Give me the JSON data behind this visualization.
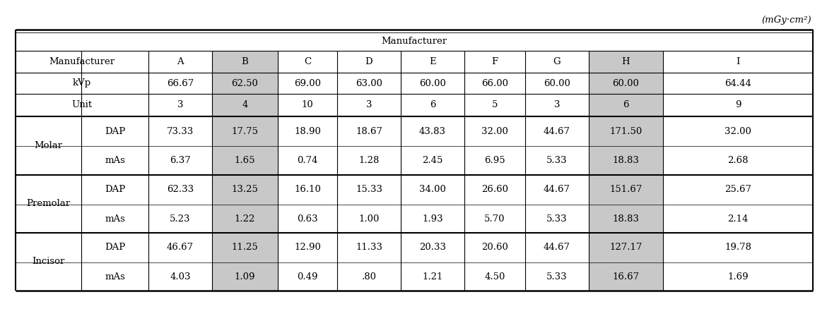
{
  "unit_label": "(mGy·cm²)",
  "main_header": "Manufacturer",
  "col_headers": [
    "Manufacturer",
    "A",
    "B",
    "C",
    "D",
    "E",
    "F",
    "G",
    "H",
    "I"
  ],
  "kvp_row": [
    "kVp",
    "66.67",
    "62.50",
    "69.00",
    "63.00",
    "60.00",
    "66.00",
    "60.00",
    "60.00",
    "64.44"
  ],
  "unit_row": [
    "Unit",
    "3",
    "4",
    "10",
    "3",
    "6",
    "5",
    "3",
    "6",
    "9"
  ],
  "molar_dap": [
    "DAP",
    "73.33",
    "17.75",
    "18.90",
    "18.67",
    "43.83",
    "32.00",
    "44.67",
    "171.50",
    "32.00"
  ],
  "molar_mas": [
    "mAs",
    "6.37",
    "1.65",
    "0.74",
    "1.28",
    "2.45",
    "6.95",
    "5.33",
    "18.83",
    "2.68"
  ],
  "premolar_dap": [
    "DAP",
    "62.33",
    "13.25",
    "16.10",
    "15.33",
    "34.00",
    "26.60",
    "44.67",
    "151.67",
    "25.67"
  ],
  "premolar_mas": [
    "mAs",
    "5.23",
    "1.22",
    "0.63",
    "1.00",
    "1.93",
    "5.70",
    "5.33",
    "18.83",
    "2.14"
  ],
  "incisor_dap": [
    "DAP",
    "46.67",
    "11.25",
    "12.90",
    "11.33",
    "20.33",
    "20.60",
    "44.67",
    "127.17",
    "19.78"
  ],
  "incisor_mas": [
    "mAs",
    "4.03",
    "1.09",
    "0.49",
    ".80",
    "1.21",
    "4.50",
    "5.33",
    "16.67",
    "1.69"
  ],
  "bg_color": "#ffffff",
  "shade_color_b": "#c8c8c8",
  "shade_color_h": "#c8c8c8",
  "text_color": "#000000",
  "font_size": 9.5,
  "font_family": "DejaVu Serif"
}
